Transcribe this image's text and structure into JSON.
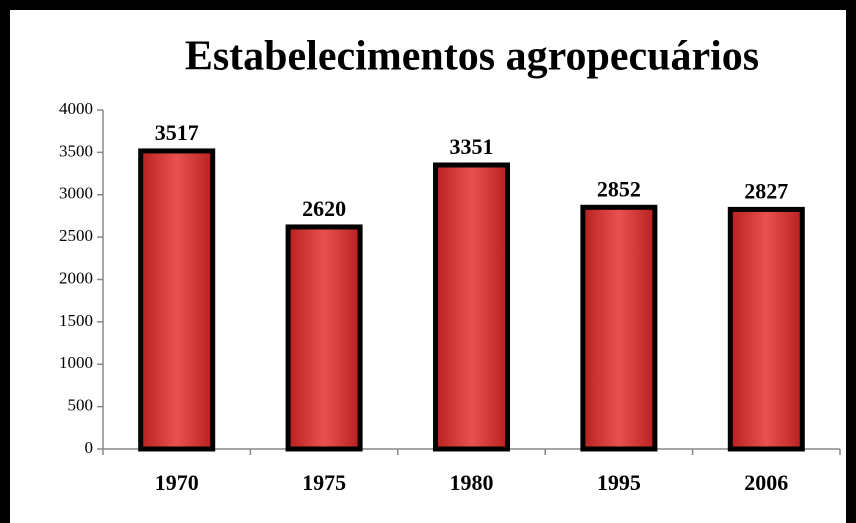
{
  "chart_data": {
    "type": "bar",
    "title": "Estabelecimentos agropecuários",
    "categories": [
      "1970",
      "1975",
      "1980",
      "1995",
      "2006"
    ],
    "values": [
      3517,
      2620,
      3351,
      2852,
      2827
    ],
    "color": "#e04040",
    "ylim": [
      0,
      4000
    ],
    "yticks": [
      0,
      500,
      1000,
      1500,
      2000,
      2500,
      3000,
      3500,
      4000
    ]
  }
}
